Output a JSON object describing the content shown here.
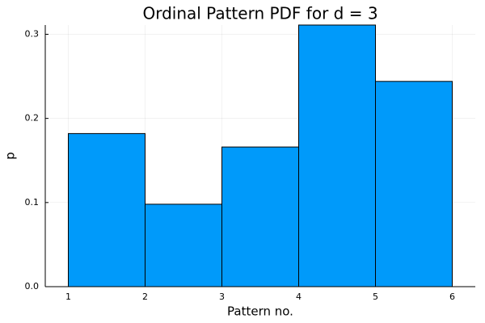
{
  "chart_data": {
    "type": "bar",
    "title": "Ordinal Pattern PDF for d = 3",
    "xlabel": "Pattern no.",
    "ylabel": "p",
    "bin_edges": [
      1,
      2,
      3,
      4,
      5,
      6
    ],
    "values": [
      0.182,
      0.098,
      0.166,
      0.311,
      0.244
    ],
    "xlim": [
      0.7,
      6.3
    ],
    "ylim": [
      0,
      0.311
    ],
    "x_ticks": [
      1,
      2,
      3,
      4,
      5,
      6
    ],
    "x_tick_labels": [
      "1",
      "2",
      "3",
      "4",
      "5",
      "6"
    ],
    "y_ticks": [
      0.0,
      0.1,
      0.2,
      0.3
    ],
    "y_tick_labels": [
      "0.0",
      "0.1",
      "0.2",
      "0.3"
    ],
    "grid": true,
    "legend": "none",
    "colors": {
      "bar_fill": "#009AFA",
      "bar_stroke": "#000000",
      "axis": "#000000",
      "background": "#ffffff"
    }
  }
}
